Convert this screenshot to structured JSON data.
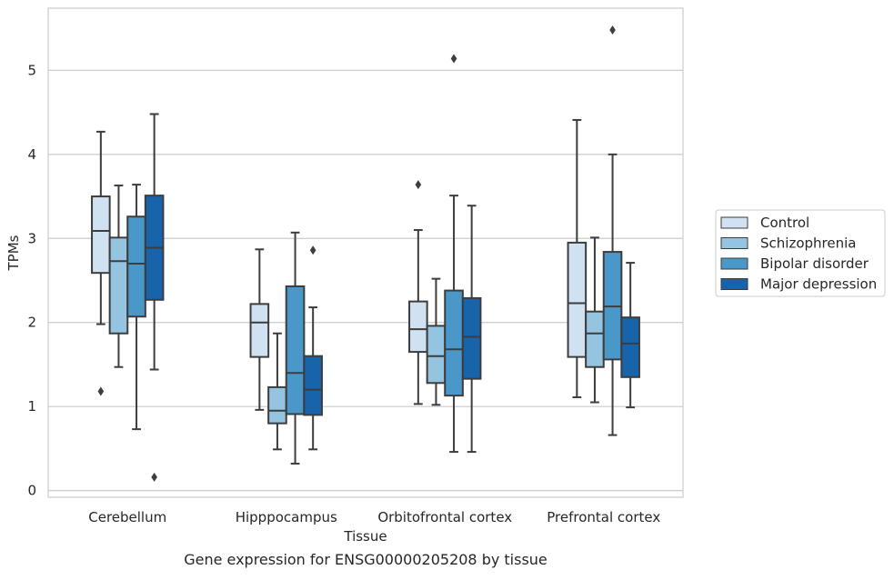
{
  "chart_data": {
    "type": "box",
    "caption": "Gene expression for ENSG00000205208 by tissue",
    "xlabel": "Tissue",
    "ylabel": "TPMs",
    "ylim": [
      -0.08,
      5.74
    ],
    "yticks": [
      0,
      1,
      2,
      3,
      4,
      5
    ],
    "grid": true,
    "legend_position": "right",
    "categories": [
      "Cerebellum",
      "Hipppocampus",
      "Orbitofrontal cortex",
      "Prefrontal cortex"
    ],
    "series": [
      {
        "name": "Control",
        "color": "#d0e1f2",
        "boxes": [
          {
            "whislo": 1.98,
            "q1": 2.59,
            "med": 3.09,
            "q3": 3.5,
            "whishi": 4.27,
            "fliers": [
              1.18
            ]
          },
          {
            "whislo": 0.96,
            "q1": 1.59,
            "med": 2.0,
            "q3": 2.22,
            "whishi": 2.87,
            "fliers": []
          },
          {
            "whislo": 1.03,
            "q1": 1.65,
            "med": 1.92,
            "q3": 2.25,
            "whishi": 3.1,
            "fliers": [
              3.64
            ]
          },
          {
            "whislo": 1.11,
            "q1": 1.59,
            "med": 2.23,
            "q3": 2.95,
            "whishi": 4.41,
            "fliers": []
          }
        ]
      },
      {
        "name": "Schizophrenia",
        "color": "#94c4df",
        "boxes": [
          {
            "whislo": 1.47,
            "q1": 1.87,
            "med": 2.73,
            "q3": 3.01,
            "whishi": 3.63,
            "fliers": []
          },
          {
            "whislo": 0.49,
            "q1": 0.8,
            "med": 0.95,
            "q3": 1.23,
            "whishi": 1.87,
            "fliers": []
          },
          {
            "whislo": 1.02,
            "q1": 1.28,
            "med": 1.6,
            "q3": 1.96,
            "whishi": 2.52,
            "fliers": []
          },
          {
            "whislo": 1.05,
            "q1": 1.47,
            "med": 1.87,
            "q3": 2.13,
            "whishi": 3.01,
            "fliers": []
          }
        ]
      },
      {
        "name": "Bipolar disorder",
        "color": "#4a98c9",
        "boxes": [
          {
            "whislo": 0.73,
            "q1": 2.07,
            "med": 2.7,
            "q3": 3.26,
            "whishi": 3.64,
            "fliers": []
          },
          {
            "whislo": 0.32,
            "q1": 0.91,
            "med": 1.4,
            "q3": 2.43,
            "whishi": 3.07,
            "fliers": []
          },
          {
            "whislo": 0.46,
            "q1": 1.13,
            "med": 1.68,
            "q3": 2.38,
            "whishi": 3.51,
            "fliers": [
              5.14
            ]
          },
          {
            "whislo": 0.66,
            "q1": 1.56,
            "med": 2.19,
            "q3": 2.84,
            "whishi": 4.0,
            "fliers": [
              5.48
            ]
          }
        ]
      },
      {
        "name": "Major depression",
        "color": "#1764ab",
        "boxes": [
          {
            "whislo": 1.44,
            "q1": 2.27,
            "med": 2.89,
            "q3": 3.51,
            "whishi": 4.48,
            "fliers": [
              0.16
            ]
          },
          {
            "whislo": 0.49,
            "q1": 0.9,
            "med": 1.2,
            "q3": 1.6,
            "whishi": 2.18,
            "fliers": [
              2.86
            ]
          },
          {
            "whislo": 0.46,
            "q1": 1.33,
            "med": 1.83,
            "q3": 2.29,
            "whishi": 3.39,
            "fliers": []
          },
          {
            "whislo": 0.99,
            "q1": 1.35,
            "med": 1.75,
            "q3": 2.06,
            "whishi": 2.71,
            "fliers": []
          }
        ]
      }
    ]
  }
}
